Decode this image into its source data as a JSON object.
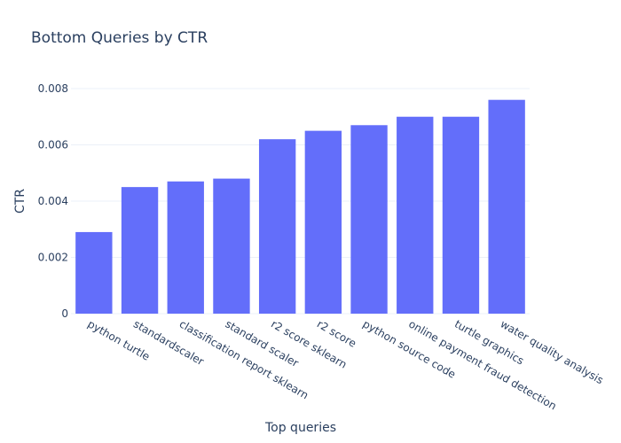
{
  "chart_data": {
    "type": "bar",
    "title": "Bottom Queries by CTR",
    "xlabel": "Top queries",
    "ylabel": "CTR",
    "categories": [
      "python turtle",
      "standardscaler",
      "classification report sklearn",
      "standard scaler",
      "r2 score sklearn",
      "r2 score",
      "python source code",
      "online payment fraud detection",
      "turtle graphics",
      "water quality analysis"
    ],
    "values": [
      0.0029,
      0.0045,
      0.0047,
      0.0048,
      0.0062,
      0.0065,
      0.0067,
      0.007,
      0.007,
      0.0076
    ],
    "ylim": [
      0,
      0.008
    ],
    "yticks": [
      0,
      0.002,
      0.004,
      0.006,
      0.008
    ],
    "ytick_labels": [
      "0",
      "0.002",
      "0.004",
      "0.006",
      "0.008"
    ],
    "bar_color": "#636efa",
    "grid": true,
    "legend": false
  }
}
